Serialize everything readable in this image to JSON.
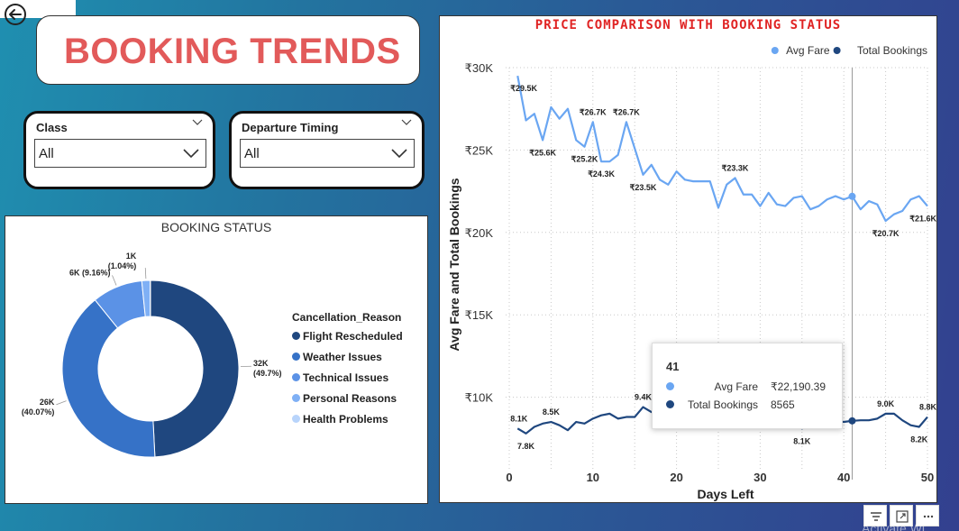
{
  "header": {
    "title": "BOOKING TRENDS"
  },
  "slicers": [
    {
      "label": "Class",
      "value": "All"
    },
    {
      "label": "Departure Timing",
      "value": "All"
    }
  ],
  "donut": {
    "title": "BOOKING STATUS",
    "legend_title": "Cancellation_Reason",
    "colors": [
      "#1f477f",
      "#3672c7",
      "#5b92e6",
      "#7fb0f5",
      "#b8d4fb"
    ],
    "slices": [
      {
        "name": "Flight Rescheduled",
        "value": 32,
        "pct": 49.7,
        "label": "32K",
        "sublabel": "(49.7%)"
      },
      {
        "name": "Weather Issues",
        "value": 26,
        "pct": 40.07,
        "label": "26K",
        "sublabel": "(40.07%)"
      },
      {
        "name": "Technical Issues",
        "value": 6,
        "pct": 9.16,
        "label": "6K (9.16%)",
        "sublabel": ""
      },
      {
        "name": "Personal Reasons",
        "value": 1,
        "pct": 1.04,
        "label": "1K",
        "sublabel": "(1.04%)"
      },
      {
        "name": "Health Problems",
        "value": 0.03,
        "pct": 0.03,
        "label": "",
        "sublabel": ""
      }
    ]
  },
  "chart_data": {
    "type": "line",
    "title": "PRICE COMPARISON WITH BOOKING STATUS",
    "xlabel": "Days Left",
    "ylabel": "Avg Fare and Total Bookings",
    "xlim": [
      0,
      50
    ],
    "ylim": [
      5000,
      30000
    ],
    "x_ticks": [
      "0",
      "10",
      "20",
      "30",
      "40",
      "50"
    ],
    "y_ticks": [
      {
        "v": 10000,
        "t": "₹10K"
      },
      {
        "v": 15000,
        "t": "₹15K"
      },
      {
        "v": 20000,
        "t": "₹20K"
      },
      {
        "v": 25000,
        "t": "₹25K"
      },
      {
        "v": 30000,
        "t": "₹30K"
      }
    ],
    "legend": {
      "position": "top-right"
    },
    "x": [
      1,
      2,
      3,
      4,
      5,
      6,
      7,
      8,
      9,
      10,
      11,
      12,
      13,
      14,
      15,
      16,
      17,
      18,
      19,
      20,
      21,
      22,
      23,
      24,
      25,
      26,
      27,
      28,
      29,
      30,
      31,
      32,
      33,
      34,
      35,
      36,
      37,
      38,
      39,
      40,
      41,
      42,
      43,
      44,
      45,
      46,
      47,
      48,
      49,
      50
    ],
    "series": [
      {
        "name": "Avg Fare",
        "color": "#6aa6f2",
        "values": [
          29500,
          26800,
          27200,
          25600,
          27600,
          26900,
          27500,
          25600,
          25200,
          26700,
          24300,
          24300,
          24700,
          26700,
          25100,
          23500,
          24100,
          23200,
          22900,
          23700,
          23200,
          23100,
          23100,
          23100,
          21500,
          22900,
          23300,
          22300,
          22300,
          21600,
          22400,
          21700,
          21600,
          22100,
          22200,
          21400,
          21600,
          22000,
          22200,
          22000,
          22190,
          21400,
          21900,
          21700,
          20700,
          21100,
          21300,
          22000,
          22200,
          21600
        ],
        "labels": [
          {
            "i": 0,
            "t": "₹29.5K",
            "pos": "below"
          },
          {
            "i": 3,
            "t": "₹25.6K",
            "pos": "below"
          },
          {
            "i": 8,
            "t": "₹25.2K",
            "pos": "below"
          },
          {
            "i": 9,
            "t": "₹26.7K",
            "pos": "above"
          },
          {
            "i": 10,
            "t": "₹24.3K",
            "pos": "below"
          },
          {
            "i": 13,
            "t": "₹26.7K",
            "pos": "above"
          },
          {
            "i": 15,
            "t": "₹23.5K",
            "pos": "below"
          },
          {
            "i": 26,
            "t": "₹23.3K",
            "pos": "above"
          },
          {
            "i": 44,
            "t": "₹20.7K",
            "pos": "below"
          },
          {
            "i": 49,
            "t": "₹21.6K",
            "pos": "below"
          }
        ]
      },
      {
        "name": "Total Bookings",
        "color": "#1f477f",
        "values": [
          8100,
          7800,
          8200,
          8400,
          8500,
          8300,
          8000,
          8500,
          8400,
          8700,
          8900,
          9000,
          8700,
          8800,
          8800,
          9400,
          9100,
          9000,
          8800,
          8600,
          8700,
          8800,
          8700,
          8600,
          8500,
          8700,
          8600,
          8500,
          8600,
          8400,
          8500,
          8400,
          8300,
          8400,
          8100,
          8500,
          8600,
          8700,
          8600,
          8500,
          8565,
          8600,
          8600,
          8700,
          9000,
          9000,
          8600,
          8300,
          8200,
          8800
        ],
        "labels": [
          {
            "i": 0,
            "t": "8.1K",
            "pos": "above"
          },
          {
            "i": 1,
            "t": "7.8K",
            "pos": "below"
          },
          {
            "i": 4,
            "t": "8.5K",
            "pos": "above"
          },
          {
            "i": 15,
            "t": "9.4K",
            "pos": "above"
          },
          {
            "i": 34,
            "t": "8.1K",
            "pos": "below"
          },
          {
            "i": 44,
            "t": "9.0K",
            "pos": "above"
          },
          {
            "i": 48,
            "t": "8.2K",
            "pos": "below"
          },
          {
            "i": 49,
            "t": "8.8K",
            "pos": "above"
          }
        ]
      }
    ],
    "hover_day": 41
  },
  "tooltip": {
    "header": "41",
    "rows": [
      {
        "key": "Avg Fare",
        "value": "₹22,190.39",
        "color": "#6aa6f2"
      },
      {
        "key": "Total Bookings",
        "value": "8565",
        "color": "#1f477f"
      }
    ]
  },
  "watermark": "Activate Wi"
}
